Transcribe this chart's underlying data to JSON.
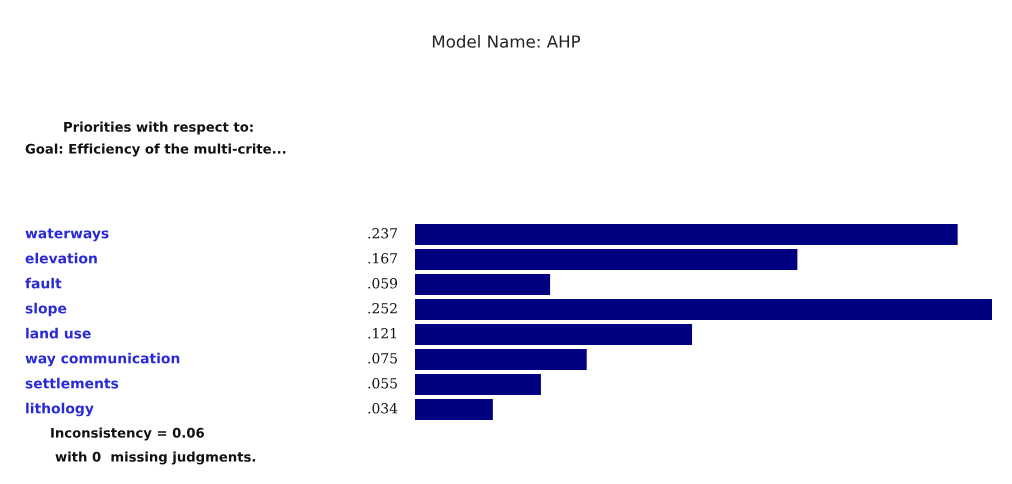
{
  "chart_data": {
    "type": "bar",
    "orientation": "horizontal",
    "title": "Model Name: AHP",
    "categories": [
      "waterways",
      "elevation",
      "fault",
      "slope",
      "land use",
      "way communication",
      "settlements",
      "lithology"
    ],
    "values": [
      0.237,
      0.167,
      0.059,
      0.252,
      0.121,
      0.075,
      0.055,
      0.034
    ],
    "value_labels": [
      ".237",
      ".167",
      ".059",
      ".252",
      ".121",
      ".075",
      ".055",
      ".034"
    ],
    "color": "#000080",
    "xlim": [
      0,
      0.252
    ],
    "annotations": [
      "Priorities with respect to:",
      "Goal: Efficiency of the multi-crite...",
      "Inconsistency = 0.06",
      "with 0  missing judgments."
    ]
  }
}
